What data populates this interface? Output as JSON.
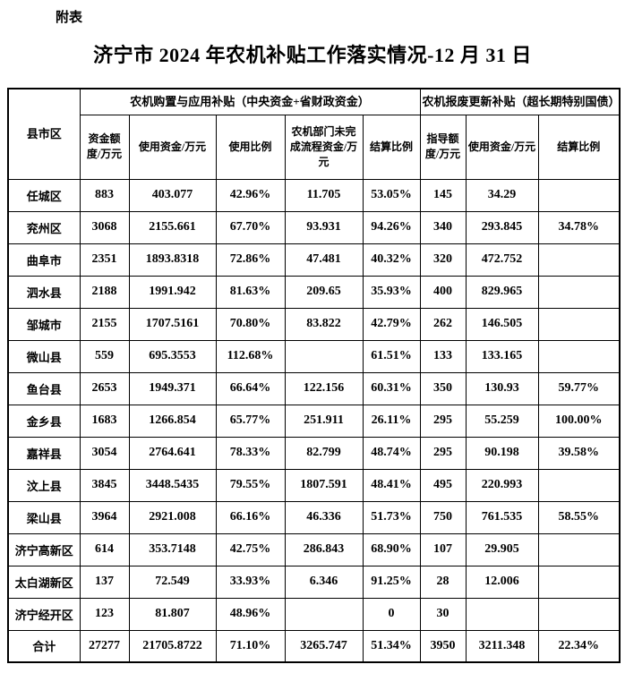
{
  "page": {
    "annotation": "附表",
    "title": "济宁市 2024 年农机补贴工作落实情况-12 月 31 日"
  },
  "table": {
    "corner_header": "县市区",
    "groups": [
      {
        "label": "农机购置与应用补贴（中央资金+省财政资金）",
        "colspan": 5
      },
      {
        "label": "农机报废更新补贴（超长期特别国债）",
        "colspan": 3
      }
    ],
    "columns": [
      "资金额度/万元",
      "使用资金/万元",
      "使用比例",
      "农机部门未完成流程资金/万元",
      "结算比例",
      "指导额度/万元",
      "使用资金/万元",
      "结算比例"
    ],
    "rows": [
      {
        "name": "任城区",
        "cells": [
          "883",
          "403.077",
          "42.96%",
          "11.705",
          "53.05%",
          "145",
          "34.29",
          ""
        ]
      },
      {
        "name": "兖州区",
        "cells": [
          "3068",
          "2155.661",
          "67.70%",
          "93.931",
          "94.26%",
          "340",
          "293.845",
          "34.78%"
        ]
      },
      {
        "name": "曲阜市",
        "cells": [
          "2351",
          "1893.8318",
          "72.86%",
          "47.481",
          "40.32%",
          "320",
          "472.752",
          ""
        ]
      },
      {
        "name": "泗水县",
        "cells": [
          "2188",
          "1991.942",
          "81.63%",
          "209.65",
          "35.93%",
          "400",
          "829.965",
          ""
        ]
      },
      {
        "name": "邹城市",
        "cells": [
          "2155",
          "1707.5161",
          "70.80%",
          "83.822",
          "42.79%",
          "262",
          "146.505",
          ""
        ]
      },
      {
        "name": "微山县",
        "cells": [
          "559",
          "695.3553",
          "112.68%",
          "",
          "61.51%",
          "133",
          "133.165",
          ""
        ]
      },
      {
        "name": "鱼台县",
        "cells": [
          "2653",
          "1949.371",
          "66.64%",
          "122.156",
          "60.31%",
          "350",
          "130.93",
          "59.77%"
        ]
      },
      {
        "name": "金乡县",
        "cells": [
          "1683",
          "1266.854",
          "65.77%",
          "251.911",
          "26.11%",
          "295",
          "55.259",
          "100.00%"
        ]
      },
      {
        "name": "嘉祥县",
        "cells": [
          "3054",
          "2764.641",
          "78.33%",
          "82.799",
          "48.74%",
          "295",
          "90.198",
          "39.58%"
        ]
      },
      {
        "name": "汶上县",
        "cells": [
          "3845",
          "3448.5435",
          "79.55%",
          "1807.591",
          "48.41%",
          "495",
          "220.993",
          ""
        ]
      },
      {
        "name": "梁山县",
        "cells": [
          "3964",
          "2921.008",
          "66.16%",
          "46.336",
          "51.73%",
          "750",
          "761.535",
          "58.55%"
        ]
      },
      {
        "name": "济宁高新区",
        "cells": [
          "614",
          "353.7148",
          "42.75%",
          "286.843",
          "68.90%",
          "107",
          "29.905",
          ""
        ]
      },
      {
        "name": "太白湖新区",
        "cells": [
          "137",
          "72.549",
          "33.93%",
          "6.346",
          "91.25%",
          "28",
          "12.006",
          ""
        ]
      },
      {
        "name": "济宁经开区",
        "cells": [
          "123",
          "81.807",
          "48.96%",
          "",
          "0",
          "30",
          "",
          ""
        ]
      },
      {
        "name": "合计",
        "cells": [
          "27277",
          "21705.8722",
          "71.10%",
          "3265.747",
          "51.34%",
          "3950",
          "3211.348",
          "22.34%"
        ]
      }
    ]
  }
}
